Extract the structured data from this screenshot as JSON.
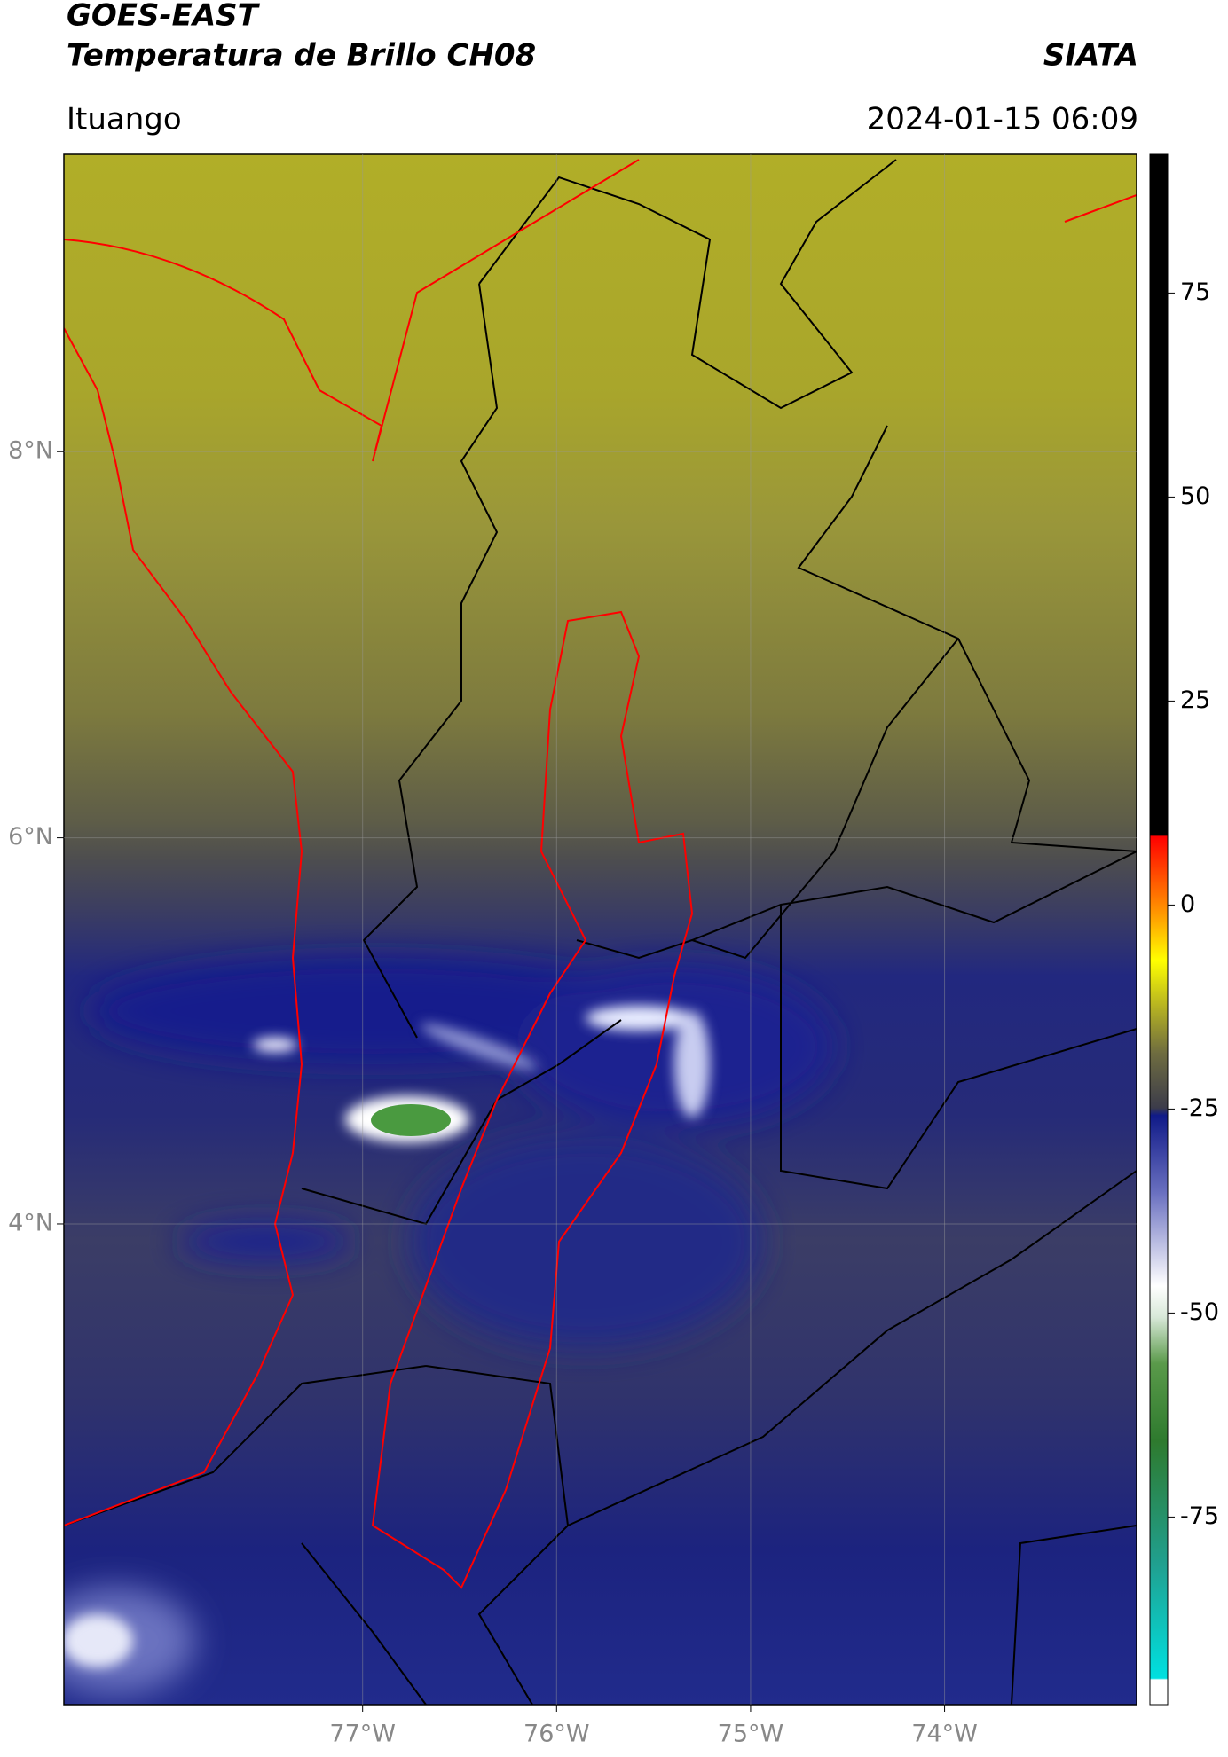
{
  "header": {
    "satellite": "GOES-EAST",
    "product": "Temperatura de Brillo CH08",
    "institution": "SIATA",
    "region": "Ituango",
    "datetime": "2024-01-15 06:09"
  },
  "map": {
    "xlim": [
      -78.54,
      -73.01
    ],
    "ylim": [
      1.51,
      9.54
    ],
    "xticks": [
      {
        "value": -77,
        "label": "77°W"
      },
      {
        "value": -76,
        "label": "76°W"
      },
      {
        "value": -75,
        "label": "75°W"
      },
      {
        "value": -74,
        "label": "74°W"
      }
    ],
    "yticks": [
      {
        "value": 8,
        "label": "8°N"
      },
      {
        "value": 6,
        "label": "6°N"
      },
      {
        "value": 4,
        "label": "4°N"
      }
    ]
  },
  "colorbar": {
    "clim": [
      -98,
      92
    ],
    "ticks": [
      75,
      50,
      25,
      0,
      -25,
      -50,
      -75
    ]
  }
}
